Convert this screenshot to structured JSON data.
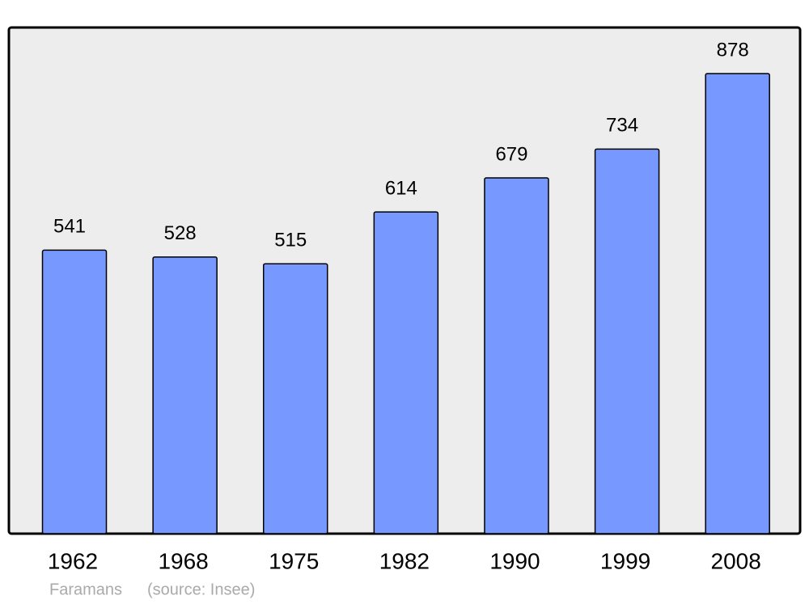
{
  "chart_data": {
    "type": "bar",
    "categories": [
      "1962",
      "1968",
      "1975",
      "1982",
      "1990",
      "1999",
      "2008"
    ],
    "values": [
      541,
      528,
      515,
      614,
      679,
      734,
      878
    ],
    "color": "#7799ff",
    "annotations": [
      "Faramans",
      "(source: Insee)"
    ]
  }
}
